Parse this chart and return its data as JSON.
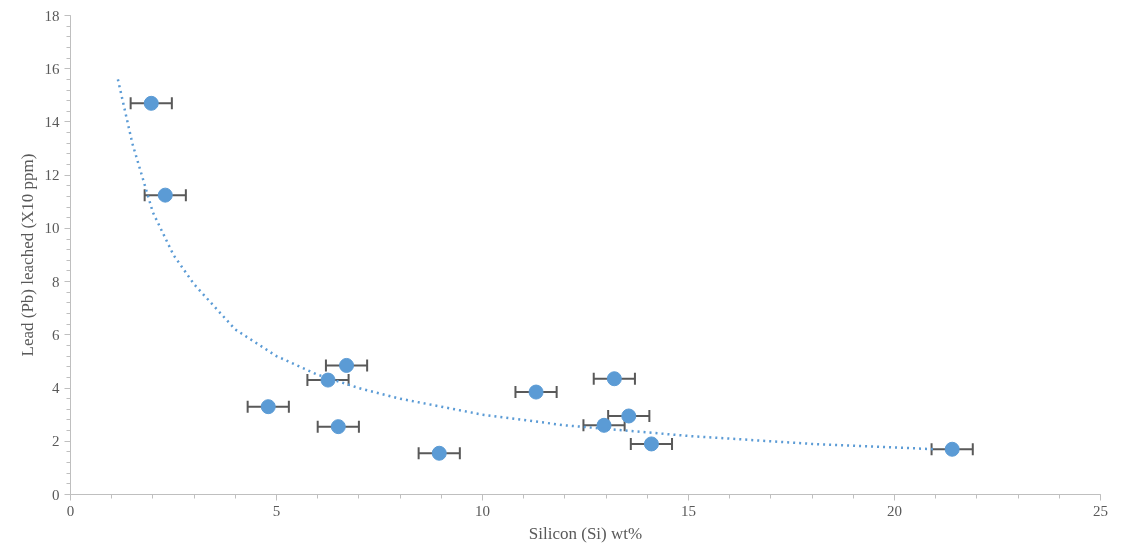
{
  "chart_data": {
    "type": "scatter",
    "xlabel": "Silicon (Si) wt%",
    "ylabel": "Lead (Pb) leached (X10 ppm)",
    "xlim": [
      0,
      25
    ],
    "xticks": [
      0,
      5,
      10,
      15,
      20,
      25
    ],
    "ylim": [
      0,
      18
    ],
    "yticks": [
      0,
      2,
      4,
      6,
      8,
      10,
      12,
      14,
      16,
      18
    ],
    "grid": false,
    "series": [
      {
        "marker": "circle",
        "color": "#5b9bd5",
        "x": [
          1.96,
          2.3,
          4.8,
          6.25,
          6.7,
          6.5,
          8.95,
          11.3,
          13.2,
          12.95,
          13.55,
          14.1,
          21.4
        ],
        "values": [
          14.7,
          11.25,
          3.3,
          4.3,
          4.85,
          2.55,
          1.55,
          3.85,
          4.35,
          2.6,
          2.95,
          1.9,
          1.7
        ],
        "xerrors": [
          0.5,
          0.5,
          0.5,
          0.5,
          0.5,
          0.5,
          0.5,
          0.5,
          0.5,
          0.5,
          0.5,
          0.5,
          0.5
        ]
      },
      {
        "type": "line",
        "marker": "none",
        "color": "#5b9bd5",
        "line_style": "dotted",
        "x": [
          1.15,
          1.5,
          2,
          2.5,
          3,
          4,
          5,
          6,
          7,
          8,
          10,
          12,
          15,
          18,
          21
        ],
        "values": [
          15.6,
          13.2,
          10.6,
          9.0,
          7.9,
          6.2,
          5.2,
          4.5,
          4.0,
          3.6,
          3.0,
          2.6,
          2.2,
          1.9,
          1.7
        ]
      }
    ]
  }
}
